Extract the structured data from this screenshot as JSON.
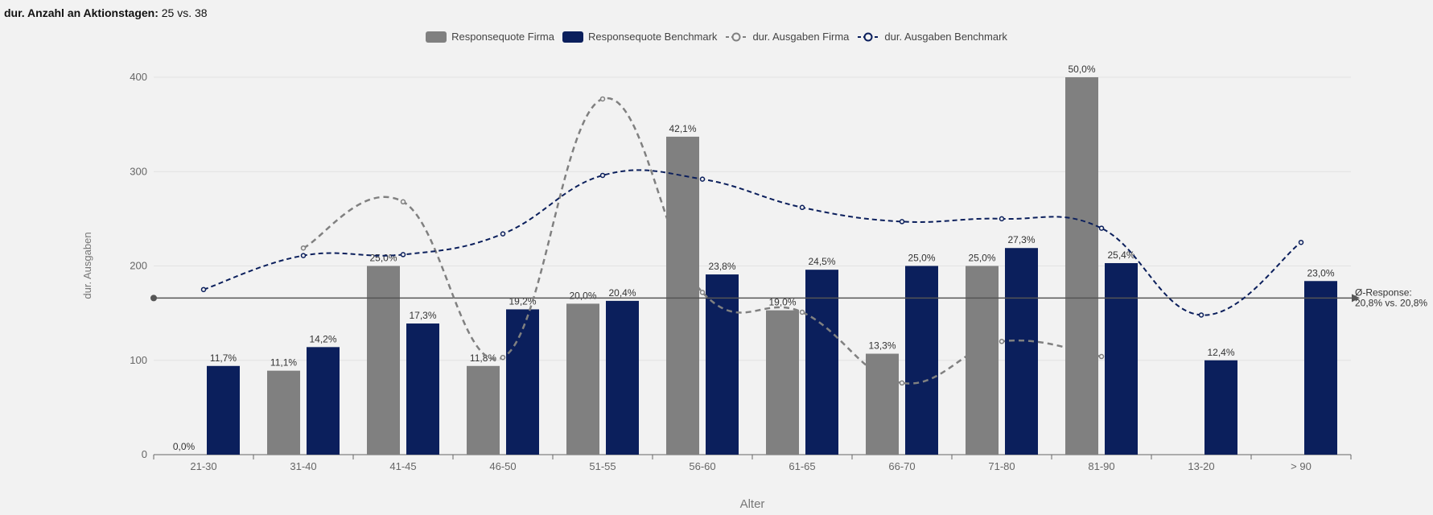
{
  "header": {
    "label": "dur. Anzahl an Aktionstagen:",
    "value": "25 vs. 38"
  },
  "legend": [
    {
      "name": "Responsequote Firma",
      "kind": "bar",
      "color": "#808080"
    },
    {
      "name": "Responsequote Benchmark",
      "kind": "bar",
      "color": "#0b1f5c"
    },
    {
      "name": "dur. Ausgaben Firma",
      "kind": "line",
      "color": "#808080"
    },
    {
      "name": "dur. Ausgaben Benchmark",
      "kind": "line",
      "color": "#0b1f5c"
    }
  ],
  "chart_data": {
    "type": "bar",
    "xlabel": "Alter",
    "ylabel": "dur. Ausgaben",
    "ylim": [
      0,
      400
    ],
    "yticks": [
      0,
      100,
      200,
      300,
      400
    ],
    "categories": [
      "21-30",
      "31-40",
      "41-45",
      "46-50",
      "51-55",
      "56-60",
      "61-65",
      "66-70",
      "71-80",
      "81-90",
      "13-20",
      "> 90"
    ],
    "series": [
      {
        "name": "Responsequote Firma",
        "kind": "bar",
        "color": "#808080",
        "values": [
          0,
          89,
          200,
          94,
          160,
          337,
          153,
          107,
          200,
          400,
          null,
          null
        ],
        "labels": [
          "0,0%",
          "11,1%",
          "25,0%",
          "11,8%",
          "20,0%",
          "42,1%",
          "19,0%",
          "13,3%",
          "25,0%",
          "50,0%",
          null,
          null
        ]
      },
      {
        "name": "Responsequote Benchmark",
        "kind": "bar",
        "color": "#0b1f5c",
        "values": [
          94,
          114,
          139,
          154,
          163,
          191,
          196,
          200,
          219,
          203,
          100,
          184
        ],
        "labels": [
          "11,7%",
          "14,2%",
          "17,3%",
          "19,2%",
          "20,4%",
          "23,8%",
          "24,5%",
          "25,0%",
          "27,3%",
          "25,4%",
          "12,4%",
          "23,0%"
        ]
      },
      {
        "name": "dur. Ausgaben Firma",
        "kind": "line",
        "color": "#808080",
        "values": [
          null,
          219,
          268,
          103,
          377,
          172,
          151,
          76,
          120,
          104,
          null,
          null
        ]
      },
      {
        "name": "dur. Ausgaben Benchmark",
        "kind": "line",
        "color": "#0b1f5c",
        "values": [
          175,
          211,
          212,
          234,
          296,
          292,
          262,
          247,
          250,
          240,
          148,
          225
        ]
      }
    ],
    "average_line": {
      "value": 166,
      "label_line1": "Ø-Response:",
      "label_line2": "20,8% vs. 20,8%"
    }
  }
}
